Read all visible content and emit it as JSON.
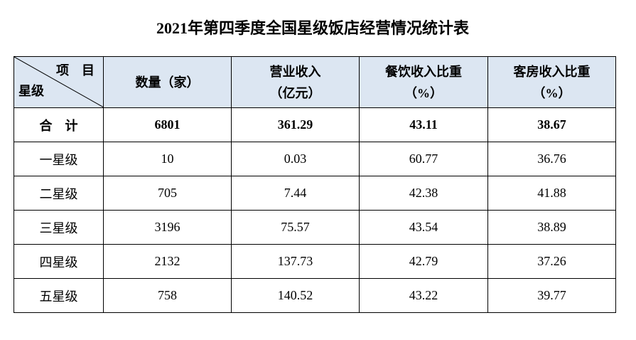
{
  "title": "2021年第四季度全国星级饭店经营情况统计表",
  "table": {
    "corner": {
      "top": "项　目",
      "bottom": "星级"
    },
    "columns": [
      [
        "数量（家）"
      ],
      [
        "营业收入",
        "（亿元）"
      ],
      [
        "餐饮收入比重",
        "（%）"
      ],
      [
        "客房收入比重",
        "（%）"
      ]
    ],
    "rows": [
      [
        "合　计",
        "6801",
        "361.29",
        "43.11",
        "38.67"
      ],
      [
        "一星级",
        "10",
        "0.03",
        "60.77",
        "36.76"
      ],
      [
        "二星级",
        "705",
        "7.44",
        "42.38",
        "41.88"
      ],
      [
        "三星级",
        "3196",
        "75.57",
        "43.54",
        "38.89"
      ],
      [
        "四星级",
        "2132",
        "137.73",
        "42.79",
        "37.26"
      ],
      [
        "五星级",
        "758",
        "140.52",
        "43.22",
        "39.77"
      ]
    ]
  }
}
